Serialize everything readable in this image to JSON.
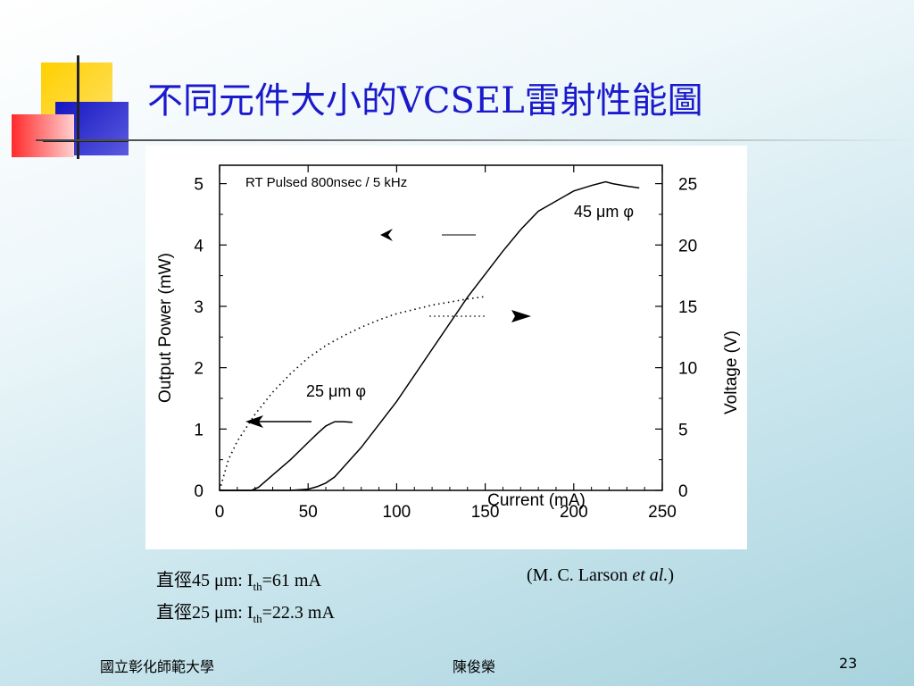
{
  "slide": {
    "title": "不同元件大小的VCSEL雷射性能圖",
    "caption_line1_prefix": "直徑45 μm: I",
    "caption_line1_sub": "th",
    "caption_line1_suffix": "=61 mA",
    "caption_line2_prefix": "直徑25 μm: I",
    "caption_line2_sub": "th",
    "caption_line2_suffix": "=22.3 mA",
    "citation_prefix": "(M. C. Larson ",
    "citation_italic": "et al.",
    "citation_suffix": ")",
    "footer_left": "國立彰化師範大學",
    "footer_center": "陳俊榮",
    "page_number": "23"
  },
  "colors": {
    "title": "#1a1acc",
    "logo_yellow": "#ffcc00",
    "logo_blue": "#2222cc",
    "logo_red": "#ff3333"
  },
  "chart_data": {
    "type": "line",
    "annotation": "RT Pulsed 800nsec / 5 kHz",
    "xlabel": "Current (mA)",
    "ylabel_left": "Output Power (mW)",
    "ylabel_right": "Voltage (V)",
    "xlim": [
      0,
      250
    ],
    "ylim_left": [
      0,
      5.3
    ],
    "ylim_right": [
      0,
      26.5
    ],
    "x_ticks": [
      0,
      50,
      100,
      150,
      200,
      250
    ],
    "y_left_ticks": [
      0,
      1,
      2,
      3,
      4,
      5
    ],
    "y_right_ticks": [
      0,
      5,
      10,
      15,
      20,
      25
    ],
    "series": [
      {
        "name": "45 μm φ",
        "axis": "left",
        "style": "solid",
        "x": [
          0,
          40,
          50,
          55,
          60,
          65,
          70,
          80,
          100,
          120,
          140,
          160,
          170,
          180,
          200,
          210,
          218,
          222,
          230,
          237
        ],
        "y": [
          0,
          0,
          0.02,
          0.06,
          0.12,
          0.22,
          0.38,
          0.7,
          1.45,
          2.3,
          3.15,
          3.9,
          4.25,
          4.55,
          4.88,
          4.97,
          5.03,
          5.0,
          4.96,
          4.93
        ]
      },
      {
        "name": "25 μm φ",
        "axis": "left",
        "style": "solid",
        "x": [
          0,
          18,
          22,
          30,
          40,
          50,
          55,
          60,
          65,
          70,
          75
        ],
        "y": [
          0,
          0,
          0.05,
          0.25,
          0.5,
          0.78,
          0.92,
          1.05,
          1.12,
          1.12,
          1.11
        ]
      },
      {
        "name": "",
        "axis": "right",
        "style": "dotted",
        "x": [
          0,
          5,
          10,
          20,
          30,
          40,
          50,
          60,
          70,
          80,
          90,
          100,
          120,
          140,
          150
        ],
        "y": [
          0,
          2.5,
          4,
          6.2,
          8,
          9.5,
          10.8,
          11.8,
          12.6,
          13.3,
          13.9,
          14.4,
          15.1,
          15.6,
          15.8
        ]
      }
    ],
    "labels": [
      "45 μm φ",
      "25 μm φ"
    ]
  }
}
